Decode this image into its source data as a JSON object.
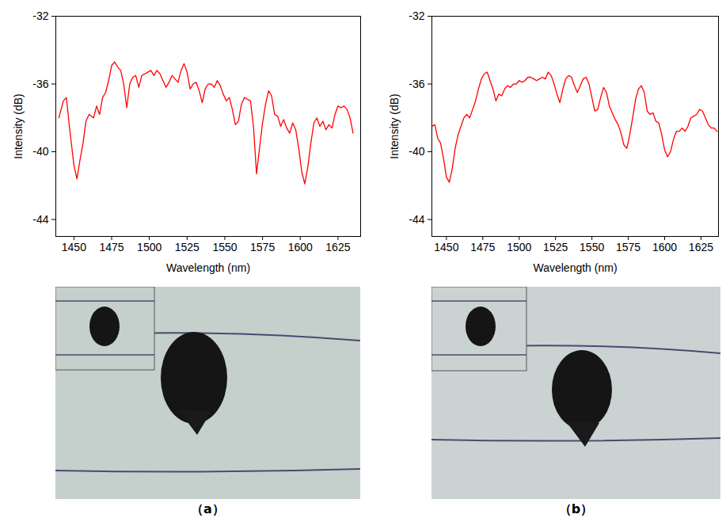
{
  "chart_data": [
    {
      "type": "line",
      "xlabel": "Wavelength (nm)",
      "ylabel": "Intensity (dB)",
      "color": "#ff0000",
      "xlim": [
        1438,
        1640
      ],
      "ylim": [
        -45,
        -32
      ],
      "xticks": [
        1450,
        1475,
        1500,
        1525,
        1550,
        1575,
        1600,
        1625
      ],
      "yticks": [
        -44,
        -40,
        -36,
        -32
      ],
      "x": [
        1440,
        1443,
        1445,
        1447,
        1450,
        1452,
        1454,
        1456,
        1458,
        1460,
        1463,
        1465,
        1467,
        1469,
        1471,
        1473,
        1475,
        1477,
        1479,
        1481,
        1483,
        1485,
        1487,
        1489,
        1491,
        1493,
        1495,
        1497,
        1499,
        1501,
        1503,
        1505,
        1507,
        1509,
        1511,
        1513,
        1515,
        1517,
        1519,
        1521,
        1523,
        1525,
        1527,
        1529,
        1531,
        1533,
        1535,
        1537,
        1539,
        1541,
        1543,
        1545,
        1547,
        1549,
        1551,
        1553,
        1555,
        1557,
        1559,
        1561,
        1563,
        1565,
        1567,
        1569,
        1571,
        1573,
        1575,
        1577,
        1579,
        1581,
        1583,
        1585,
        1587,
        1589,
        1591,
        1593,
        1595,
        1597,
        1599,
        1601,
        1603,
        1605,
        1607,
        1609,
        1611,
        1613,
        1615,
        1617,
        1619,
        1621,
        1623,
        1625,
        1627,
        1629,
        1631,
        1633,
        1635
      ],
      "values": [
        -38.0,
        -37.0,
        -36.8,
        -38.5,
        -40.8,
        -41.6,
        -40.5,
        -39.5,
        -38.2,
        -37.8,
        -38.0,
        -37.3,
        -37.8,
        -36.8,
        -36.5,
        -35.8,
        -34.9,
        -34.7,
        -35.0,
        -35.2,
        -36.0,
        -37.4,
        -36.0,
        -35.6,
        -35.5,
        -36.2,
        -35.5,
        -35.4,
        -35.3,
        -35.2,
        -35.5,
        -35.2,
        -35.4,
        -35.8,
        -36.2,
        -35.9,
        -35.5,
        -35.7,
        -35.9,
        -35.2,
        -34.8,
        -35.3,
        -36.3,
        -36.0,
        -35.9,
        -36.4,
        -37.1,
        -36.3,
        -36.0,
        -36.0,
        -36.2,
        -35.8,
        -36.1,
        -36.6,
        -37.0,
        -36.8,
        -37.5,
        -38.4,
        -38.2,
        -37.2,
        -36.8,
        -36.9,
        -37.0,
        -38.5,
        -41.3,
        -39.8,
        -38.3,
        -37.2,
        -36.4,
        -36.7,
        -37.8,
        -37.9,
        -38.5,
        -38.1,
        -38.6,
        -38.9,
        -38.3,
        -38.7,
        -39.8,
        -41.2,
        -41.9,
        -40.9,
        -39.5,
        -38.3,
        -38.0,
        -38.5,
        -38.2,
        -38.7,
        -38.4,
        -38.6,
        -37.8,
        -37.3,
        -37.4,
        -37.3,
        -37.5,
        -38.0,
        -38.9
      ]
    },
    {
      "type": "line",
      "xlabel": "Wavelength (nm)",
      "ylabel": "Intensity (dB)",
      "color": "#ff0000",
      "xlim": [
        1440,
        1637
      ],
      "ylim": [
        -45,
        -32
      ],
      "xticks": [
        1450,
        1475,
        1500,
        1525,
        1550,
        1575,
        1600,
        1625
      ],
      "yticks": [
        -44,
        -40,
        -36,
        -32
      ],
      "x": [
        1440,
        1442,
        1444,
        1446,
        1448,
        1450,
        1452,
        1454,
        1456,
        1458,
        1460,
        1462,
        1464,
        1466,
        1468,
        1470,
        1472,
        1474,
        1476,
        1478,
        1480,
        1482,
        1484,
        1486,
        1488,
        1490,
        1492,
        1494,
        1496,
        1498,
        1500,
        1502,
        1504,
        1506,
        1508,
        1510,
        1512,
        1514,
        1516,
        1518,
        1520,
        1522,
        1524,
        1526,
        1528,
        1530,
        1532,
        1534,
        1536,
        1538,
        1540,
        1542,
        1544,
        1546,
        1548,
        1550,
        1552,
        1554,
        1556,
        1558,
        1560,
        1562,
        1564,
        1566,
        1568,
        1570,
        1572,
        1574,
        1576,
        1578,
        1580,
        1582,
        1584,
        1586,
        1588,
        1590,
        1592,
        1594,
        1596,
        1598,
        1600,
        1602,
        1604,
        1606,
        1608,
        1610,
        1612,
        1614,
        1616,
        1618,
        1620,
        1622,
        1624,
        1626,
        1628,
        1630,
        1632,
        1634,
        1636
      ],
      "values": [
        -38.5,
        -38.4,
        -39.2,
        -39.5,
        -40.4,
        -41.5,
        -41.8,
        -41.0,
        -39.8,
        -39.0,
        -38.5,
        -38.0,
        -37.8,
        -38.0,
        -37.5,
        -37.0,
        -36.3,
        -35.7,
        -35.4,
        -35.3,
        -35.8,
        -36.3,
        -37.0,
        -36.6,
        -36.7,
        -36.3,
        -36.1,
        -36.2,
        -36.0,
        -36.0,
        -35.8,
        -35.9,
        -35.8,
        -35.6,
        -35.6,
        -35.7,
        -35.8,
        -35.7,
        -35.6,
        -35.7,
        -35.3,
        -35.5,
        -36.0,
        -36.6,
        -37.1,
        -36.3,
        -35.7,
        -35.5,
        -35.6,
        -36.1,
        -36.5,
        -36.1,
        -35.7,
        -35.6,
        -36.0,
        -36.8,
        -37.6,
        -37.5,
        -36.8,
        -36.2,
        -36.5,
        -37.3,
        -37.7,
        -38.1,
        -38.4,
        -38.9,
        -39.6,
        -39.8,
        -39.0,
        -38.0,
        -36.9,
        -36.3,
        -36.1,
        -36.5,
        -37.6,
        -37.8,
        -37.7,
        -38.2,
        -38.3,
        -39.0,
        -39.9,
        -40.3,
        -40.0,
        -39.3,
        -38.8,
        -38.8,
        -38.6,
        -38.8,
        -38.5,
        -38.0,
        -37.9,
        -37.8,
        -37.5,
        -37.6,
        -38.0,
        -38.4,
        -38.6,
        -38.6,
        -38.8
      ]
    }
  ],
  "panel_labels": [
    "（a）",
    "（b）"
  ]
}
